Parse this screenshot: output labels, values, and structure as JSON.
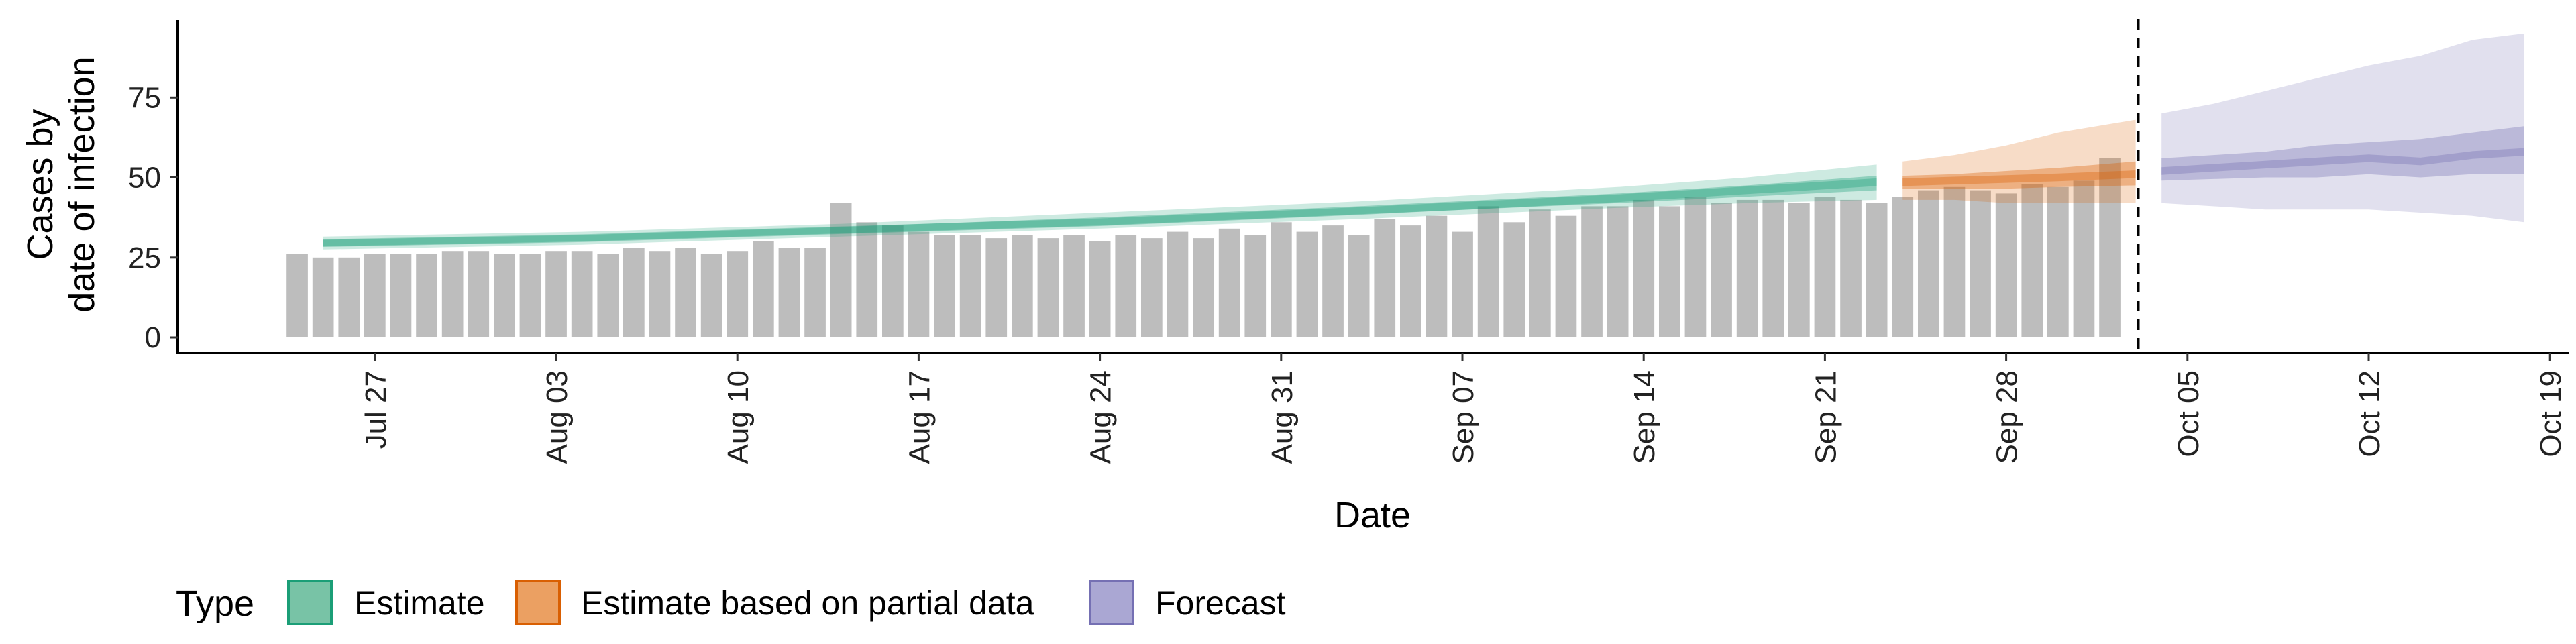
{
  "chart_data": {
    "type": "bar",
    "title": "",
    "xlabel": "Date",
    "ylabel": [
      "Cases by",
      "date of infection"
    ],
    "x_start": "2020-07-24",
    "y_ticks": [
      0,
      25,
      50,
      75
    ],
    "ylim": [
      0,
      100
    ],
    "x_ticks": [
      "Jul 27",
      "Aug 03",
      "Aug 10",
      "Aug 17",
      "Aug 24",
      "Aug 31",
      "Sep 07",
      "Sep 14",
      "Sep 21",
      "Sep 28",
      "Oct 05",
      "Oct 12",
      "Oct 19"
    ],
    "bars": [
      26,
      25,
      25,
      26,
      26,
      26,
      27,
      27,
      26,
      26,
      27,
      27,
      26,
      28,
      27,
      28,
      26,
      27,
      30,
      28,
      28,
      42,
      36,
      35,
      33,
      32,
      32,
      31,
      32,
      31,
      32,
      30,
      32,
      31,
      33,
      31,
      34,
      32,
      36,
      33,
      35,
      32,
      37,
      35,
      38,
      33,
      41,
      36,
      40,
      38,
      41,
      41,
      43,
      41,
      44,
      42,
      43,
      43,
      42,
      44,
      43,
      42,
      44,
      46,
      47,
      46,
      45,
      48,
      47,
      49,
      56
    ],
    "forecast_date": "Oct 03",
    "series": [
      {
        "name": "Estimate",
        "color": "#1b9e77",
        "x": [
          "Jul 25",
          "Aug 04",
          "Aug 14",
          "Aug 24",
          "Sep 03",
          "Sep 13",
          "Sep 18",
          "Sep 23"
        ],
        "median": [
          29.5,
          31,
          33.5,
          36,
          39.5,
          43.5,
          46,
          48.5
        ],
        "lower50": [
          28.5,
          30,
          32.5,
          35,
          38.5,
          42,
          44,
          46
        ],
        "upper50": [
          30.5,
          32,
          34.5,
          37.5,
          41,
          45,
          47.5,
          50.5
        ],
        "lower90": [
          27.5,
          29,
          31.5,
          34,
          37,
          40.5,
          42,
          43
        ],
        "upper90": [
          31.5,
          33,
          35.5,
          39,
          42.5,
          47,
          50,
          54
        ]
      },
      {
        "name": "Estimate based on partial data",
        "color": "#d95f02",
        "x": [
          "Sep 24",
          "Sep 26",
          "Sep 28",
          "Sep 30",
          "Oct 03"
        ],
        "median": [
          48.5,
          49,
          49.5,
          50,
          51
        ],
        "lower50": [
          46.5,
          46.5,
          46.5,
          47,
          47.5
        ],
        "upper50": [
          50.5,
          51,
          52,
          53,
          55
        ],
        "lower90": [
          43,
          43,
          42,
          42,
          42
        ],
        "upper90": [
          55,
          57,
          60,
          64,
          68
        ]
      },
      {
        "name": "Forecast",
        "color": "#7570b3",
        "x": [
          "Oct 04",
          "Oct 06",
          "Oct 08",
          "Oct 10",
          "Oct 12",
          "Oct 14",
          "Oct 16",
          "Oct 18"
        ],
        "median": [
          52,
          53,
          54,
          55,
          56,
          55,
          57,
          58
        ],
        "lower50": [
          49,
          49.5,
          50,
          50,
          51,
          50,
          51,
          51
        ],
        "upper50": [
          56,
          57,
          58,
          60,
          61,
          62,
          64,
          66
        ],
        "lower90": [
          42,
          41,
          40,
          40,
          40,
          39,
          38,
          36
        ],
        "upper90": [
          70,
          73,
          77,
          81,
          85,
          88,
          93,
          95
        ]
      }
    ],
    "legend": {
      "title": "Type",
      "position": "bottom",
      "items": [
        "Estimate",
        "Estimate based on partial data",
        "Forecast"
      ]
    }
  }
}
